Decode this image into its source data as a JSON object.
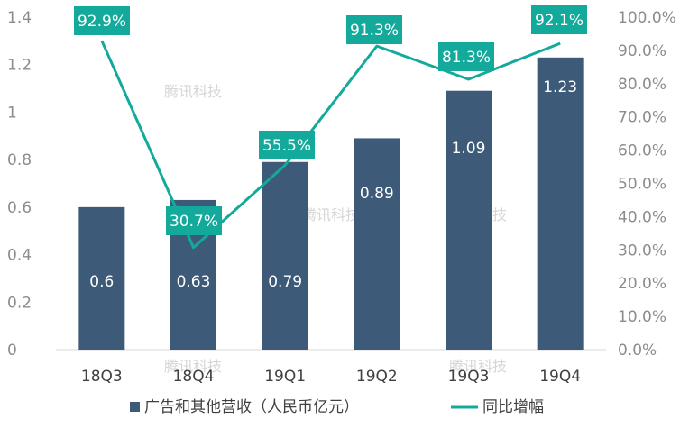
{
  "chart_data": {
    "type": "bar",
    "categories": [
      "18Q3",
      "18Q4",
      "19Q1",
      "19Q2",
      "19Q3",
      "19Q4"
    ],
    "series": [
      {
        "name": "广告和其他营收（人民币亿元）",
        "type": "bar",
        "axis": "left",
        "values": [
          0.6,
          0.63,
          0.79,
          0.89,
          1.09,
          1.23
        ],
        "labels": [
          "0.6",
          "0.63",
          "0.79",
          "0.89",
          "1.09",
          "1.23"
        ]
      },
      {
        "name": "同比增幅",
        "type": "line",
        "axis": "right",
        "values": [
          92.9,
          30.7,
          55.5,
          91.3,
          81.3,
          92.1
        ],
        "labels": [
          "92.9%",
          "30.7%",
          "55.5%",
          "91.3%",
          "81.3%",
          "92.1%"
        ]
      }
    ],
    "left_axis": {
      "ylim": [
        0,
        1.4
      ],
      "ticks": [
        0,
        0.2,
        0.4,
        0.6,
        0.8,
        1,
        1.2,
        1.4
      ],
      "tick_labels": [
        "0",
        "0.2",
        "0.4",
        "0.6",
        "0.8",
        "1",
        "1.2",
        "1.4"
      ]
    },
    "right_axis": {
      "ylim": [
        0,
        100
      ],
      "ticks": [
        0,
        10,
        20,
        30,
        40,
        50,
        60,
        70,
        80,
        90,
        100
      ],
      "tick_labels": [
        "0.0%",
        "10.0%",
        "20.0%",
        "30.0%",
        "40.0%",
        "50.0%",
        "60.0%",
        "70.0%",
        "80.0%",
        "90.0%",
        "100.0%"
      ]
    },
    "grid": false,
    "legend": "bottom",
    "colors": {
      "bar": "#3d5a78",
      "line": "#13a99b",
      "label_bg": "#13a99b"
    }
  },
  "watermark": "腾讯科技"
}
